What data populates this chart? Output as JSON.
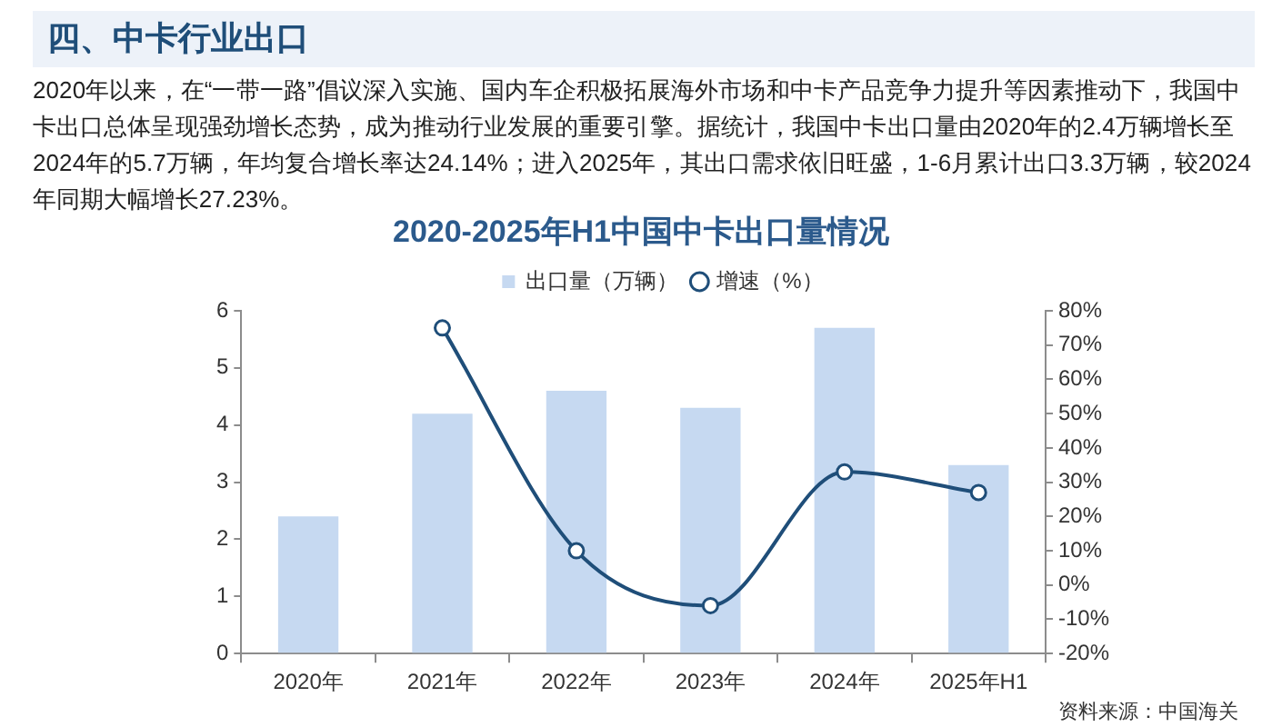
{
  "chart_data": {
    "type": "bar",
    "title": "2020-2025年H1中国中卡出口量情况",
    "annotations": [
      "四、中卡行业出口",
      "2020年以来，在“一带一路”倡议深入实施、国内车企积极拓展海外市场和中卡产品竞争力提升等因素推动下，我国中卡出口总体呈现强劲增长态势，成为推动行业发展的重要引擎。据统计，我国中卡出口量由2020年的2.4万辆增长至2024年的5.7万辆，年均复合增长率达24.14%；进入2025年，其出口需求依旧旺盛，1-6月累计出口3.3万辆，较2024年同期大幅增长27.23%。",
      "资料来源：中国海关"
    ],
    "categories": [
      "2020年",
      "2021年",
      "2022年",
      "2023年",
      "2024年",
      "2025年H1"
    ],
    "series": [
      {
        "name": "出口量（万辆）",
        "color": "#c6d9f1",
        "values": [
          2.4,
          4.2,
          4.6,
          4.3,
          5.7,
          3.3
        ]
      },
      {
        "name": "增速（%）",
        "type": "line",
        "axis": "y2",
        "color": "#1f4e79",
        "values": [
          null,
          75,
          10,
          -6,
          33,
          27
        ]
      }
    ],
    "ylim": [
      0,
      6
    ],
    "yticks": [
      0,
      1,
      2,
      3,
      4,
      5,
      6
    ],
    "y2lim": [
      -20,
      80
    ],
    "y2ticks": [
      {
        "value": -20,
        "label": "-20%"
      },
      {
        "value": -10,
        "label": "-10%"
      },
      {
        "value": 0,
        "label": "0%"
      },
      {
        "value": 10,
        "label": "10%"
      },
      {
        "value": 20,
        "label": "20%"
      },
      {
        "value": 30,
        "label": "30%"
      },
      {
        "value": 40,
        "label": "40%"
      },
      {
        "value": 50,
        "label": "50%"
      },
      {
        "value": 60,
        "label": "60%"
      },
      {
        "value": 70,
        "label": "70%"
      },
      {
        "value": 80,
        "label": "80%"
      }
    ],
    "grid": false,
    "legend": "top",
    "marker": "circle",
    "line_style": "solid"
  }
}
